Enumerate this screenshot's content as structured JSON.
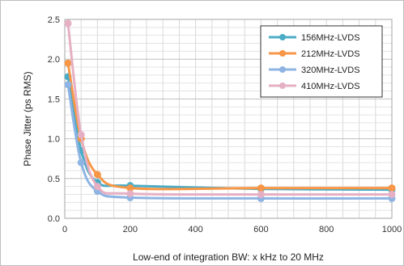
{
  "chart_data": {
    "type": "line",
    "xlabel": "Low-end of integration BW: x kHz to 20 MHz",
    "ylabel": "Phase Jitter (ps RMS)",
    "xlim": [
      0,
      1000
    ],
    "ylim": [
      0,
      2.5
    ],
    "x_ticks": [
      0,
      200,
      400,
      600,
      800,
      1000
    ],
    "y_ticks": [
      "0.0",
      "0.5",
      "1.0",
      "1.5",
      "2.0",
      "2.5"
    ],
    "grid": true,
    "legend_position": "top-right",
    "x": [
      10,
      50,
      100,
      200,
      600,
      1000
    ],
    "series": [
      {
        "name": "156MHz-LVDS",
        "color": "#4bacc6",
        "values": [
          1.78,
          0.85,
          0.45,
          0.41,
          0.37,
          0.36
        ]
      },
      {
        "name": "212MHz-LVDS",
        "color": "#f79646",
        "values": [
          1.95,
          1.0,
          0.55,
          0.38,
          0.38,
          0.38
        ]
      },
      {
        "name": "320MHz-LVDS",
        "color": "#8eb4e3",
        "values": [
          1.68,
          0.7,
          0.34,
          0.26,
          0.25,
          0.25
        ]
      },
      {
        "name": "410MHz-LVDS",
        "color": "#e6b0c4",
        "values": [
          2.45,
          1.05,
          0.4,
          0.31,
          0.3,
          0.3
        ]
      }
    ]
  }
}
